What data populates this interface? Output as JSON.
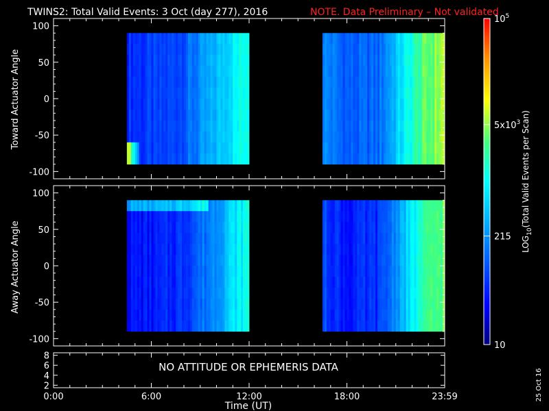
{
  "header": {
    "title": "TWINS2: Total Valid Events:  3 Oct (day 277), 2016",
    "note": "NOTE. Data Preliminary – Not validated",
    "note_color": "#ff2020"
  },
  "footer": {
    "generated_date": "25 Oct 16"
  },
  "chart_data": [
    {
      "type": "heatmap",
      "ylabel": "Toward Actuator Angle",
      "ylim": [
        -110,
        110
      ],
      "y_ticks": [
        100,
        50,
        0,
        -50,
        -100
      ],
      "y_tick_labels": [
        "100",
        "50",
        "0",
        "-50",
        "-100"
      ],
      "data_y_range": [
        -90,
        90
      ],
      "time_blocks": [
        {
          "start_hr": 4.5,
          "end_hr": 12.0
        },
        {
          "start_hr": 16.5,
          "end_hr": 24.0
        }
      ],
      "value_profile_log10": [
        {
          "hr": 4.5,
          "v": 1.75
        },
        {
          "hr": 6.5,
          "v": 1.8
        },
        {
          "hr": 8.0,
          "v": 2.0
        },
        {
          "hr": 9.5,
          "v": 2.4
        },
        {
          "hr": 11.0,
          "v": 2.9
        },
        {
          "hr": 12.0,
          "v": 3.2
        },
        {
          "hr": 16.5,
          "v": 2.3
        },
        {
          "hr": 18.0,
          "v": 2.0
        },
        {
          "hr": 20.0,
          "v": 2.1
        },
        {
          "hr": 21.5,
          "v": 2.9
        },
        {
          "hr": 22.5,
          "v": 3.4
        },
        {
          "hr": 24.0,
          "v": 3.8
        }
      ]
    },
    {
      "type": "heatmap",
      "ylabel": "Away Actuator Angle",
      "ylim": [
        -110,
        110
      ],
      "y_ticks": [
        100,
        50,
        0,
        -50,
        -100
      ],
      "y_tick_labels": [
        "100",
        "50",
        "0",
        "-50",
        "-100"
      ],
      "data_y_range": [
        -90,
        90
      ],
      "time_blocks": [
        {
          "start_hr": 4.5,
          "end_hr": 12.0
        },
        {
          "start_hr": 16.5,
          "end_hr": 24.0
        }
      ],
      "value_profile_log10": [
        {
          "hr": 4.5,
          "v": 1.55
        },
        {
          "hr": 6.5,
          "v": 1.6
        },
        {
          "hr": 8.0,
          "v": 1.8
        },
        {
          "hr": 9.5,
          "v": 2.2
        },
        {
          "hr": 11.0,
          "v": 2.8
        },
        {
          "hr": 12.0,
          "v": 3.1
        },
        {
          "hr": 16.5,
          "v": 1.9
        },
        {
          "hr": 18.0,
          "v": 1.6
        },
        {
          "hr": 20.0,
          "v": 1.75
        },
        {
          "hr": 21.5,
          "v": 2.6
        },
        {
          "hr": 22.5,
          "v": 3.2
        },
        {
          "hr": 24.0,
          "v": 3.6
        }
      ]
    },
    {
      "type": "line",
      "annotation": "NO ATTITUDE OR EPHEMERIS DATA",
      "ylim": [
        1.5,
        8.5
      ],
      "y_ticks": [
        2,
        4,
        6,
        8
      ],
      "y_tick_labels": [
        "2",
        "4",
        "6",
        "8"
      ],
      "xlabel": "Time (UT)",
      "xlim_hr": [
        0,
        24
      ],
      "x_ticks_hr": [
        0,
        6,
        12,
        18,
        24
      ],
      "x_tick_labels": [
        "0:00",
        "6:00",
        "12:00",
        "18:00",
        "23:59"
      ]
    }
  ],
  "colorbar": {
    "label_prefix": "LOG",
    "label_sub": "10",
    "label_suffix": "(Total Valid  Events per Scan)",
    "range_log10": [
      1,
      5
    ],
    "ticks": [
      {
        "value_log10": 5.0,
        "base": "10",
        "exp": "5",
        "mult": ""
      },
      {
        "value_log10": 3.699,
        "base": "10",
        "exp": "3",
        "mult": "5x"
      },
      {
        "value_log10": 2.332,
        "base": "",
        "exp": "",
        "mult": "",
        "plain": "215"
      },
      {
        "value_log10": 1.0,
        "base": "",
        "exp": "",
        "mult": "",
        "plain": "10"
      }
    ],
    "colors": [
      "#000080",
      "#0000ff",
      "#00ffff",
      "#ffff00",
      "#ff0000"
    ]
  }
}
